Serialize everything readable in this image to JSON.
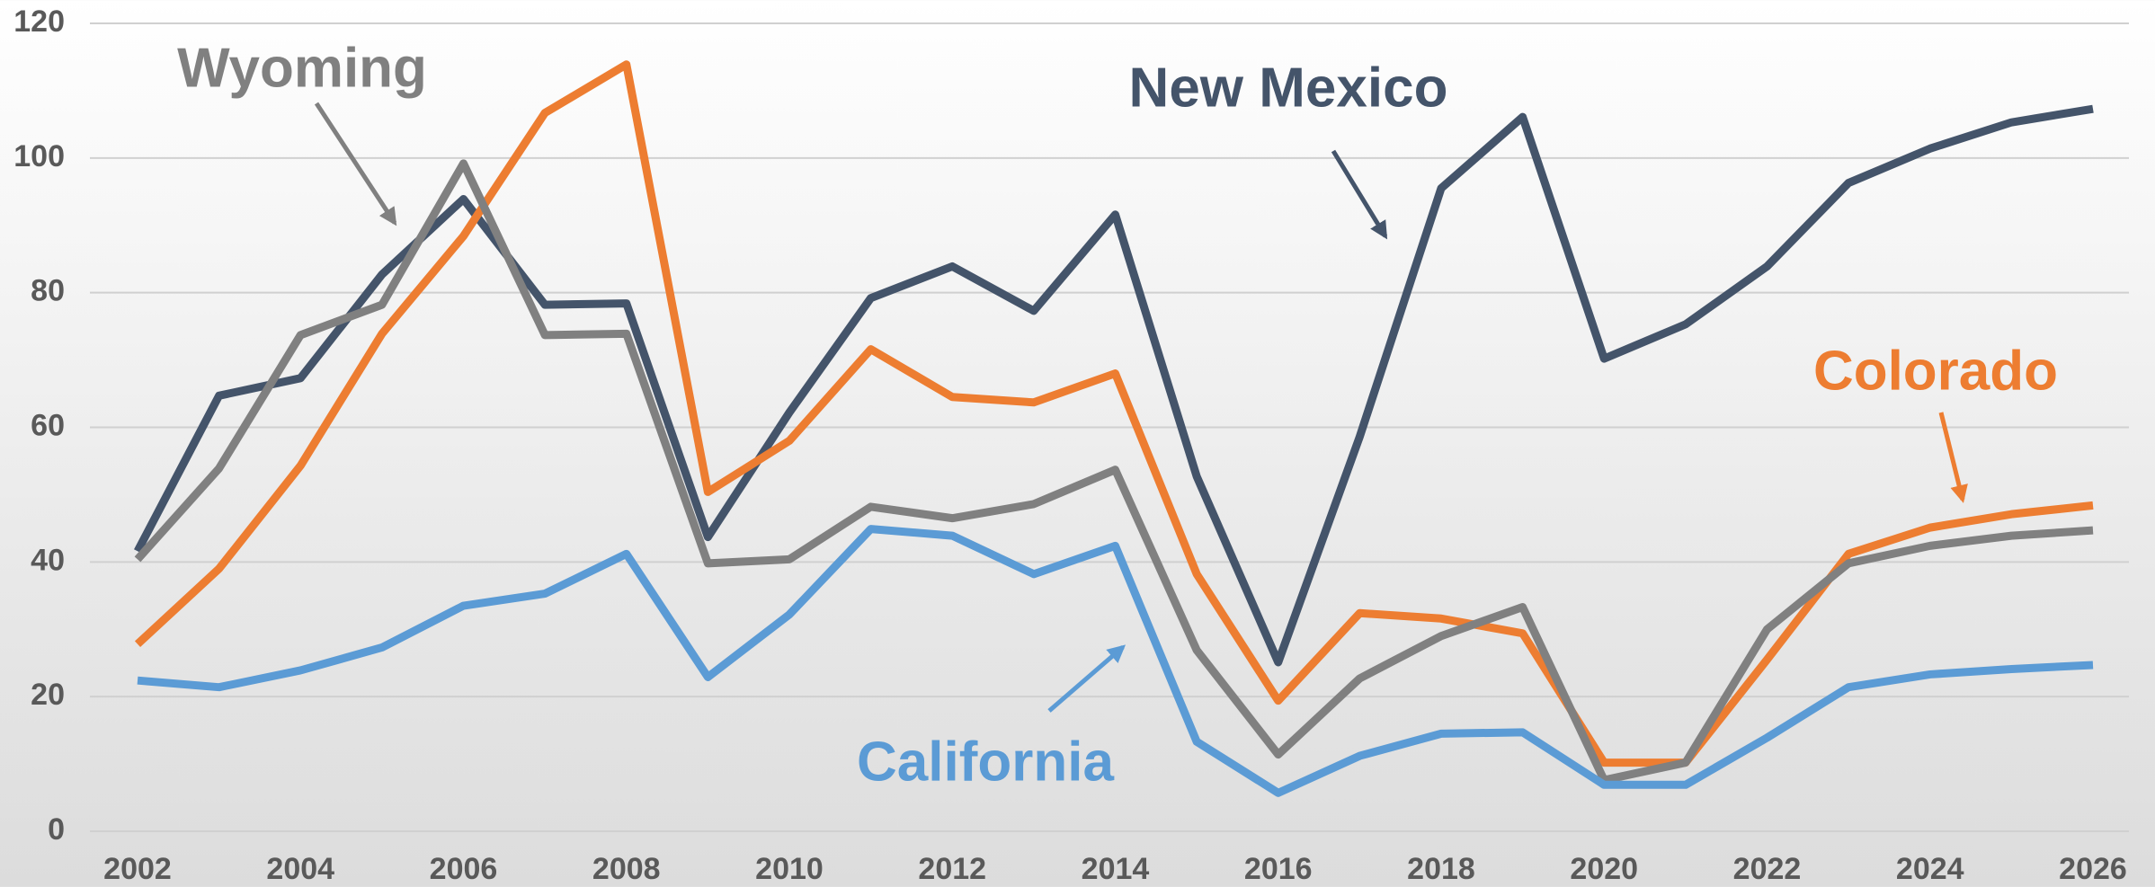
{
  "chart_data": {
    "type": "line",
    "x": [
      2002,
      2003,
      2004,
      2005,
      2006,
      2007,
      2008,
      2009,
      2010,
      2011,
      2012,
      2013,
      2014,
      2015,
      2016,
      2017,
      2018,
      2019,
      2020,
      2021,
      2022,
      2023,
      2024,
      2025,
      2026
    ],
    "xlim": [
      2002,
      2026
    ],
    "xticks": [
      2002,
      2004,
      2006,
      2008,
      2010,
      2012,
      2014,
      2016,
      2018,
      2020,
      2022,
      2024,
      2026
    ],
    "ylim": [
      0,
      120
    ],
    "yticks": [
      0,
      20,
      40,
      60,
      80,
      100,
      120
    ],
    "grid": true,
    "series": [
      {
        "name": "New Mexico",
        "color": "#44546a",
        "values": [
          41.6,
          64.7,
          67.3,
          82.7,
          93.9,
          78.2,
          78.4,
          43.7,
          62.2,
          79.2,
          83.9,
          77.3,
          91.6,
          52.7,
          25.1,
          58.6,
          95.5,
          106.1,
          70.2,
          75.3,
          83.9,
          96.3,
          101.4,
          105.3,
          107.3
        ]
      },
      {
        "name": "Colorado",
        "color": "#ed7d31",
        "values": [
          27.8,
          39,
          54.3,
          73.9,
          88.4,
          106.7,
          113.9,
          50.4,
          58,
          71.6,
          64.5,
          63.7,
          68,
          38.2,
          19.4,
          32.4,
          31.6,
          29.4,
          10.2,
          10.2,
          25.5,
          41.2,
          45.1,
          47.1,
          48.4
        ]
      },
      {
        "name": "Wyoming",
        "color": "#808080",
        "values": [
          40.4,
          53.9,
          73.7,
          78.2,
          99.2,
          73.7,
          73.9,
          39.8,
          40.4,
          48.2,
          46.5,
          48.6,
          53.7,
          26.9,
          11.4,
          22.7,
          29,
          33.3,
          7.6,
          10.2,
          30,
          39.8,
          42.4,
          43.9,
          44.7
        ]
      },
      {
        "name": "California",
        "color": "#5b9bd5",
        "values": [
          22.4,
          21.4,
          23.9,
          27.3,
          33.5,
          35.3,
          41.2,
          22.9,
          32.2,
          44.9,
          43.9,
          38.2,
          42.4,
          13.3,
          5.7,
          11.2,
          14.5,
          14.7,
          6.9,
          6.9,
          13.9,
          21.4,
          23.3,
          24.1,
          24.7
        ]
      }
    ]
  }
}
